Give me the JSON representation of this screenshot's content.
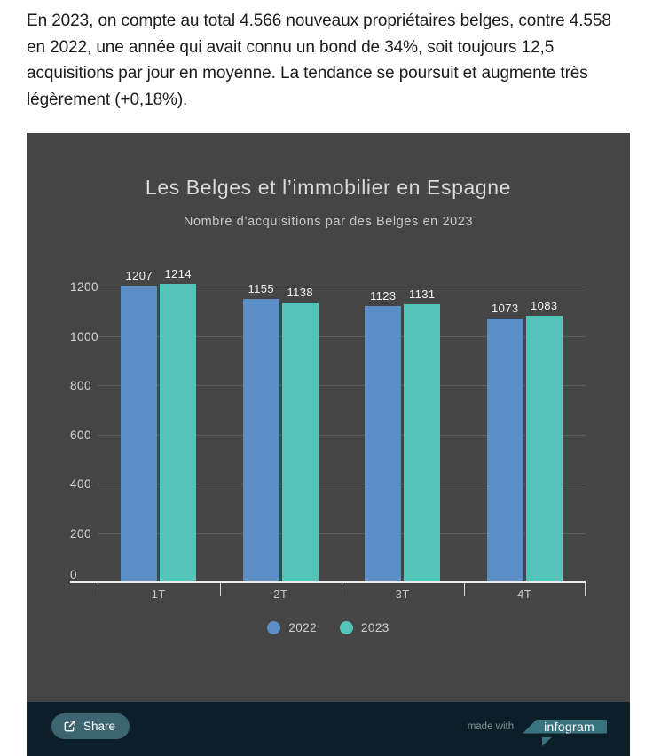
{
  "article": {
    "paragraph": "En 2023, on compte au total 4.566 nouveaux propriétaires belges, contre 4.558 en 2022, une année qui avait connu un bond de 34%, soit toujours 12,5 acquisitions par jour en moyenne. La tendance se poursuit et augmente très légèrement (+0,18%)."
  },
  "chart": {
    "title": "Les Belges et l’immobilier en Espagne",
    "subtitle": "Nombre d’acquisitions par des Belges en 2023",
    "footer": {
      "share_label": "Share",
      "made_with": "made with",
      "brand": "infogram"
    }
  },
  "chart_data": {
    "type": "bar",
    "title": "Les Belges et l’immobilier en Espagne",
    "subtitle": "Nombre d’acquisitions par des Belges en 2023",
    "categories": [
      "1T",
      "2T",
      "3T",
      "4T"
    ],
    "series": [
      {
        "name": "2022",
        "color": "#5b8ec4",
        "values": [
          1207,
          1155,
          1123,
          1073
        ]
      },
      {
        "name": "2023",
        "color": "#54c3ba",
        "values": [
          1214,
          1138,
          1131,
          1083
        ]
      }
    ],
    "xlabel": "",
    "ylabel": "",
    "ylim": [
      0,
      1200
    ],
    "yticks": [
      0,
      200,
      400,
      600,
      800,
      1000,
      1200
    ],
    "grid": true,
    "value_labels": true,
    "legend_position": "bottom"
  },
  "colors": {
    "chart_background": "#454545",
    "footer_background": "#0c1f29",
    "series_2022": "#5b8ec4",
    "series_2023": "#54c3ba",
    "axis_line": "#ececec",
    "share_button": "#3d6571",
    "infogram_badge": "#3a727e"
  }
}
